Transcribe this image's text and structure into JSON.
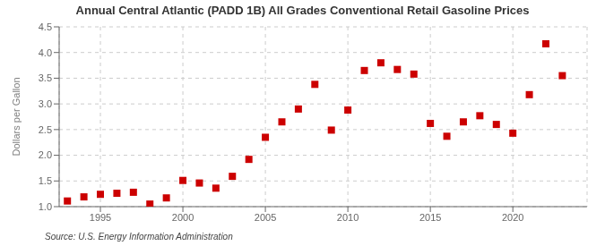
{
  "chart_data": {
    "type": "scatter",
    "title": "Annual Central Atlantic (PADD 1B) All Grades Conventional Retail Gasoline Prices",
    "y_label": "Dollars per Gallon",
    "annotations": [
      "Source: U.S. Energy Information Administration"
    ],
    "x": [
      1993,
      1994,
      1995,
      1996,
      1997,
      1998,
      1999,
      2000,
      2001,
      2002,
      2003,
      2004,
      2005,
      2006,
      2007,
      2008,
      2009,
      2010,
      2011,
      2012,
      2013,
      2014,
      2015,
      2016,
      2017,
      2018,
      2019,
      2020,
      2021,
      2022,
      2023
    ],
    "values": [
      1.11,
      1.19,
      1.24,
      1.26,
      1.28,
      1.05,
      1.17,
      1.51,
      1.46,
      1.36,
      1.59,
      1.92,
      2.35,
      2.65,
      2.9,
      3.38,
      2.49,
      2.88,
      3.65,
      3.8,
      3.67,
      3.58,
      2.62,
      2.37,
      2.65,
      2.77,
      2.6,
      2.43,
      3.18,
      4.17,
      3.55
    ],
    "color": "#cc0000",
    "marker": "square",
    "xlim": [
      1992.5,
      2024.5
    ],
    "xticks": [
      1995,
      2000,
      2005,
      2010,
      2015,
      2020
    ],
    "ylim": [
      1.0,
      4.5
    ],
    "yticks": [
      {
        "value": 1.0,
        "label": "1.0"
      },
      1.5,
      {
        "value": 2.0,
        "label": "2.0"
      },
      2.5,
      {
        "value": 3.0,
        "label": "3.0"
      },
      3.5,
      {
        "value": 4.0,
        "label": "4.0"
      },
      4.5
    ],
    "grid": true
  }
}
